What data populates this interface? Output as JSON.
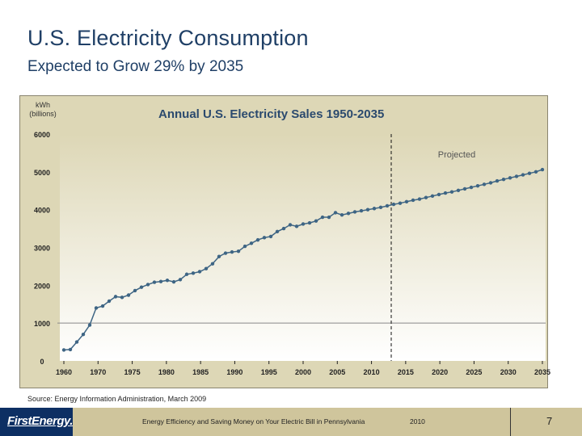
{
  "slide": {
    "title": "U.S. Electricity Consumption",
    "subtitle": "Expected to Grow 29% by 2035",
    "source": "Source: Energy Information Administration, March 2009",
    "footer": {
      "logo": "FirstEnergy.",
      "text": "Energy Efficiency and Saving Money on Your Electric Bill in Pennsylvania",
      "year": "2010",
      "page": "7"
    },
    "colors": {
      "title": "#1f3f66",
      "line": "#3e6584",
      "frame": "#ddd7b6",
      "footer": "#cfc59c",
      "logo_bg": "#0d2f63"
    }
  },
  "chart_data": {
    "type": "line",
    "title": "Annual U.S. Electricity Sales 1950-2035",
    "ylabel": "kWh\n(billions)",
    "ylabel_lines": [
      "kWh",
      "(billions)"
    ],
    "xlabel": "",
    "ylim": [
      0,
      6000
    ],
    "yticks": [
      0,
      1000,
      2000,
      3000,
      4000,
      5000,
      6000
    ],
    "ytick_labels": [
      "0",
      "1000",
      "2000",
      "3000",
      "4000",
      "5000",
      "6000"
    ],
    "xtick_labels": [
      "1960",
      "1970",
      "1975",
      "1980",
      "1985",
      "1990",
      "1995",
      "2000",
      "2005",
      "2010",
      "2015",
      "2020",
      "2025",
      "2030",
      "2035"
    ],
    "grid": "horizontal line at 1000",
    "annotation": "Projected",
    "projection_start_index": 51,
    "series": [
      {
        "name": "Electricity Sales",
        "values": [
          290,
          300,
          500,
          700,
          950,
          1400,
          1450,
          1580,
          1700,
          1680,
          1740,
          1860,
          1950,
          2020,
          2080,
          2100,
          2130,
          2090,
          2150,
          2290,
          2320,
          2360,
          2440,
          2570,
          2760,
          2850,
          2880,
          2900,
          3030,
          3110,
          3200,
          3260,
          3290,
          3420,
          3500,
          3600,
          3560,
          3620,
          3650,
          3700,
          3800,
          3800,
          3920,
          3860,
          3900,
          3940,
          3970,
          4000,
          4030,
          4060,
          4100,
          4140,
          4170,
          4210,
          4250,
          4280,
          4320,
          4360,
          4400,
          4440,
          4470,
          4510,
          4550,
          4590,
          4630,
          4670,
          4710,
          4760,
          4800,
          4840,
          4880,
          4920,
          4960,
          5000,
          5060
        ]
      }
    ]
  }
}
